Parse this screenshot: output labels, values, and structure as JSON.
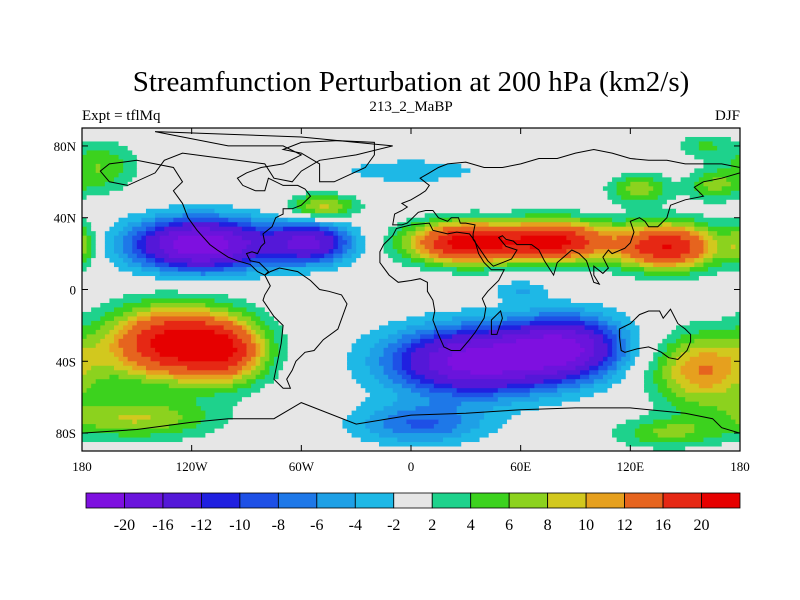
{
  "chart_data": {
    "type": "heatmap",
    "title": "Streamfunction Perturbation at 200 hPa (km2/s)",
    "left_label": "Expt = tflMq",
    "center_label": "213_2_MaBP",
    "right_label": "DJF",
    "x_range": [
      -180,
      180
    ],
    "y_range": [
      -90,
      90
    ],
    "x_ticks": [
      {
        "value": -180,
        "label": "180"
      },
      {
        "value": -120,
        "label": "120W"
      },
      {
        "value": -60,
        "label": "60W"
      },
      {
        "value": 0,
        "label": "0"
      },
      {
        "value": 60,
        "label": "60E"
      },
      {
        "value": 120,
        "label": "120E"
      },
      {
        "value": 180,
        "label": "180"
      }
    ],
    "y_ticks": [
      {
        "value": 80,
        "label": "80N"
      },
      {
        "value": 40,
        "label": "40N"
      },
      {
        "value": 0,
        "label": "0"
      },
      {
        "value": -40,
        "label": "40S"
      },
      {
        "value": -80,
        "label": "80S"
      }
    ],
    "contour_levels": [
      -20,
      -16,
      -12,
      -10,
      -8,
      -6,
      -4,
      -2,
      2,
      4,
      6,
      8,
      10,
      12,
      16,
      20
    ],
    "colorbar_labels": [
      "-20",
      "-16",
      "-12",
      "-10",
      "-8",
      "-6",
      "-4",
      "-2",
      "2",
      "4",
      "6",
      "8",
      "10",
      "12",
      "16",
      "20"
    ],
    "colors": [
      "#7e10e0",
      "#6a14dc",
      "#5418d8",
      "#2020e0",
      "#1e50e6",
      "#1e78e8",
      "#1ea0e6",
      "#1eb8e6",
      "#e6e6e6",
      "#1ed28c",
      "#3cd21e",
      "#8cd21e",
      "#d2c81e",
      "#e6a01e",
      "#e6641e",
      "#e62814",
      "#e60000"
    ],
    "anomaly_centers": [
      {
        "lon": -170,
        "lat": 68,
        "amp": 6,
        "slon": 14,
        "slat": 10
      },
      {
        "lon": -115,
        "lat": 25,
        "amp": -24,
        "slon": 26,
        "slat": 10
      },
      {
        "lon": -55,
        "lat": 26,
        "amp": -16,
        "slon": 16,
        "slat": 8
      },
      {
        "lon": -48,
        "lat": 46,
        "amp": 9,
        "slon": 13,
        "slat": 5
      },
      {
        "lon": 30,
        "lat": 26,
        "amp": 22,
        "slon": 22,
        "slat": 8
      },
      {
        "lon": 80,
        "lat": 27,
        "amp": 20,
        "slon": 20,
        "slat": 8
      },
      {
        "lon": 140,
        "lat": 24,
        "amp": 20,
        "slon": 20,
        "slat": 9
      },
      {
        "lon": -180,
        "lat": 25,
        "amp": 6,
        "slon": 6,
        "slat": 9
      },
      {
        "lon": 125,
        "lat": 56,
        "amp": 7,
        "slon": 12,
        "slat": 6
      },
      {
        "lon": 165,
        "lat": 58,
        "amp": 6,
        "slon": 10,
        "slat": 6
      },
      {
        "lon": 0,
        "lat": 66,
        "amp": -3,
        "slon": 35,
        "slat": 6
      },
      {
        "lon": 160,
        "lat": 80,
        "amp": 4,
        "slon": 10,
        "slat": 5
      },
      {
        "lon": -130,
        "lat": -30,
        "amp": 22,
        "slon": 25,
        "slat": 14
      },
      {
        "lon": -100,
        "lat": -35,
        "amp": 12,
        "slon": 15,
        "slat": 12
      },
      {
        "lon": -150,
        "lat": -72,
        "amp": 8,
        "slon": 30,
        "slat": 8
      },
      {
        "lon": 35,
        "lat": -40,
        "amp": -22,
        "slon": 32,
        "slat": 13
      },
      {
        "lon": 85,
        "lat": -32,
        "amp": -18,
        "slon": 22,
        "slat": 12
      },
      {
        "lon": 5,
        "lat": -75,
        "amp": -8,
        "slon": 25,
        "slat": 8
      },
      {
        "lon": 160,
        "lat": -45,
        "amp": 12,
        "slon": 20,
        "slat": 14
      },
      {
        "lon": 140,
        "lat": -80,
        "amp": 6,
        "slon": 20,
        "slat": 6
      },
      {
        "lon": 60,
        "lat": 0,
        "amp": -4,
        "slon": 10,
        "slat": 4
      }
    ],
    "coastlines": [
      [
        [
          -140,
          88
        ],
        [
          -60,
          85
        ],
        [
          -30,
          82
        ],
        [
          -10,
          80
        ],
        [
          -30,
          75
        ],
        [
          -50,
          72
        ],
        [
          -60,
          66
        ],
        [
          -65,
          60
        ],
        [
          -75,
          62
        ],
        [
          -80,
          70
        ],
        [
          -95,
          72
        ],
        [
          -110,
          74
        ],
        [
          -125,
          76
        ],
        [
          -135,
          72
        ],
        [
          -140,
          65
        ],
        [
          -155,
          58
        ],
        [
          -165,
          60
        ],
        [
          -170,
          66
        ],
        [
          -165,
          70
        ],
        [
          -150,
          72
        ],
        [
          -140,
          70
        ],
        [
          -130,
          68
        ],
        [
          -125,
          60
        ],
        [
          -130,
          55
        ],
        [
          -125,
          48
        ],
        [
          -122,
          40
        ],
        [
          -117,
          33
        ],
        [
          -110,
          25
        ],
        [
          -106,
          22
        ],
        [
          -100,
          18
        ],
        [
          -95,
          16
        ],
        [
          -88,
          14
        ],
        [
          -84,
          10
        ],
        [
          -80,
          8
        ],
        [
          -78,
          10
        ],
        [
          -83,
          15
        ],
        [
          -88,
          16
        ],
        [
          -90,
          20
        ],
        [
          -87,
          21
        ],
        [
          -84,
          20
        ],
        [
          -82,
          24
        ],
        [
          -80,
          26
        ],
        [
          -81,
          31
        ],
        [
          -76,
          35
        ],
        [
          -74,
          40
        ],
        [
          -70,
          42
        ],
        [
          -70,
          45
        ],
        [
          -65,
          45
        ],
        [
          -60,
          47
        ],
        [
          -55,
          52
        ],
        [
          -58,
          56
        ],
        [
          -62,
          58
        ],
        [
          -70,
          58
        ],
        [
          -78,
          62
        ],
        [
          -80,
          55
        ],
        [
          -85,
          55
        ],
        [
          -92,
          58
        ],
        [
          -95,
          62
        ],
        [
          -90,
          65
        ],
        [
          -82,
          68
        ],
        [
          -70,
          70
        ],
        [
          -60,
          75
        ],
        [
          -70,
          80
        ],
        [
          -100,
          80
        ],
        [
          -140,
          88
        ]
      ],
      [
        [
          -80,
          8
        ],
        [
          -77,
          2
        ],
        [
          -80,
          -3
        ],
        [
          -81,
          -6
        ],
        [
          -75,
          -15
        ],
        [
          -70,
          -20
        ],
        [
          -71,
          -30
        ],
        [
          -73,
          -40
        ],
        [
          -75,
          -50
        ],
        [
          -70,
          -55
        ],
        [
          -66,
          -55
        ],
        [
          -68,
          -50
        ],
        [
          -65,
          -45
        ],
        [
          -63,
          -40
        ],
        [
          -58,
          -35
        ],
        [
          -53,
          -34
        ],
        [
          -48,
          -28
        ],
        [
          -40,
          -22
        ],
        [
          -35,
          -8
        ],
        [
          -38,
          -3
        ],
        [
          -45,
          -1
        ],
        [
          -50,
          0
        ],
        [
          -55,
          5
        ],
        [
          -62,
          10
        ],
        [
          -72,
          12
        ],
        [
          -77,
          10
        ],
        [
          -80,
          8
        ]
      ],
      [
        [
          -10,
          36
        ],
        [
          -9,
          42
        ],
        [
          -5,
          44
        ],
        [
          -2,
          46
        ],
        [
          -5,
          48
        ],
        [
          0,
          50
        ],
        [
          5,
          53
        ],
        [
          8,
          55
        ],
        [
          10,
          58
        ],
        [
          5,
          62
        ],
        [
          10,
          65
        ],
        [
          15,
          68
        ],
        [
          20,
          70
        ],
        [
          30,
          71
        ],
        [
          40,
          68
        ],
        [
          50,
          68
        ],
        [
          60,
          70
        ],
        [
          70,
          73
        ],
        [
          80,
          73
        ],
        [
          90,
          76
        ],
        [
          100,
          78
        ],
        [
          110,
          76
        ],
        [
          120,
          73
        ],
        [
          130,
          72
        ],
        [
          140,
          72
        ],
        [
          150,
          70
        ],
        [
          160,
          70
        ],
        [
          170,
          70
        ],
        [
          180,
          68
        ],
        [
          180,
          65
        ],
        [
          170,
          62
        ],
        [
          160,
          60
        ],
        [
          155,
          57
        ],
        [
          160,
          52
        ],
        [
          150,
          50
        ],
        [
          142,
          47
        ],
        [
          140,
          40
        ],
        [
          135,
          35
        ],
        [
          130,
          35
        ],
        [
          128,
          38
        ],
        [
          125,
          40
        ],
        [
          120,
          38
        ],
        [
          122,
          32
        ],
        [
          120,
          26
        ],
        [
          117,
          23
        ],
        [
          110,
          20
        ],
        [
          108,
          22
        ],
        [
          105,
          18
        ],
        [
          108,
          12
        ],
        [
          105,
          9
        ],
        [
          100,
          13
        ],
        [
          100,
          8
        ],
        [
          103,
          3
        ],
        [
          100,
          4
        ],
        [
          98,
          10
        ],
        [
          96,
          16
        ],
        [
          92,
          20
        ],
        [
          88,
          22
        ],
        [
          80,
          15
        ],
        [
          78,
          8
        ],
        [
          73,
          16
        ],
        [
          70,
          22
        ],
        [
          66,
          25
        ],
        [
          58,
          25
        ],
        [
          56,
          27
        ],
        [
          52,
          28
        ],
        [
          50,
          30
        ],
        [
          48,
          29
        ],
        [
          52,
          24
        ],
        [
          58,
          22
        ],
        [
          55,
          17
        ],
        [
          45,
          13
        ],
        [
          42,
          16
        ],
        [
          38,
          22
        ],
        [
          34,
          28
        ],
        [
          34,
          31
        ],
        [
          35,
          36
        ],
        [
          30,
          37
        ],
        [
          27,
          37
        ],
        [
          26,
          40
        ],
        [
          22,
          40
        ],
        [
          20,
          38
        ],
        [
          15,
          40
        ],
        [
          12,
          44
        ],
        [
          8,
          44
        ],
        [
          4,
          43
        ],
        [
          -2,
          37
        ],
        [
          -5,
          36
        ],
        [
          -10,
          36
        ]
      ],
      [
        [
          -17,
          21
        ],
        [
          -17,
          15
        ],
        [
          -12,
          8
        ],
        [
          -7,
          4
        ],
        [
          0,
          5
        ],
        [
          5,
          6
        ],
        [
          9,
          4
        ],
        [
          9,
          -1
        ],
        [
          12,
          -6
        ],
        [
          13,
          -12
        ],
        [
          12,
          -17
        ],
        [
          15,
          -25
        ],
        [
          18,
          -32
        ],
        [
          22,
          -34
        ],
        [
          27,
          -34
        ],
        [
          32,
          -28
        ],
        [
          35,
          -24
        ],
        [
          40,
          -16
        ],
        [
          41,
          -10
        ],
        [
          39,
          -5
        ],
        [
          42,
          -1
        ],
        [
          48,
          5
        ],
        [
          51,
          11
        ],
        [
          44,
          11
        ],
        [
          40,
          15
        ],
        [
          37,
          20
        ],
        [
          35,
          27
        ],
        [
          32,
          31
        ],
        [
          25,
          32
        ],
        [
          20,
          31
        ],
        [
          12,
          33
        ],
        [
          10,
          37
        ],
        [
          0,
          36
        ],
        [
          -8,
          34
        ],
        [
          -10,
          30
        ],
        [
          -15,
          25
        ],
        [
          -17,
          21
        ]
      ],
      [
        [
          114,
          -22
        ],
        [
          120,
          -19
        ],
        [
          125,
          -14
        ],
        [
          130,
          -12
        ],
        [
          136,
          -12
        ],
        [
          138,
          -16
        ],
        [
          142,
          -11
        ],
        [
          146,
          -19
        ],
        [
          150,
          -22
        ],
        [
          153,
          -25
        ],
        [
          153,
          -29
        ],
        [
          151,
          -34
        ],
        [
          146,
          -39
        ],
        [
          141,
          -38
        ],
        [
          137,
          -35
        ],
        [
          135,
          -34
        ],
        [
          130,
          -32
        ],
        [
          124,
          -33
        ],
        [
          117,
          -35
        ],
        [
          115,
          -34
        ],
        [
          114,
          -26
        ],
        [
          114,
          -22
        ]
      ],
      [
        [
          -60,
          -63
        ],
        [
          -30,
          -75
        ],
        [
          0,
          -70
        ],
        [
          30,
          -69
        ],
        [
          60,
          -67
        ],
        [
          90,
          -66
        ],
        [
          120,
          -66
        ],
        [
          150,
          -69
        ],
        [
          165,
          -72
        ],
        [
          170,
          -77
        ],
        [
          180,
          -80
        ],
        [
          180,
          -90
        ],
        [
          -180,
          -90
        ],
        [
          -180,
          -80
        ],
        [
          -150,
          -78
        ],
        [
          -120,
          -74
        ],
        [
          -100,
          -72
        ],
        [
          -75,
          -72
        ],
        [
          -65,
          -66
        ],
        [
          -60,
          -63
        ]
      ],
      [
        [
          -50,
          60
        ],
        [
          -42,
          60
        ],
        [
          -25,
          68
        ],
        [
          -20,
          75
        ],
        [
          -20,
          82
        ],
        [
          -40,
          83
        ],
        [
          -60,
          82
        ],
        [
          -70,
          78
        ],
        [
          -60,
          76
        ],
        [
          -50,
          70
        ],
        [
          -50,
          60
        ]
      ],
      [
        [
          44,
          -25
        ],
        [
          47,
          -25
        ],
        [
          50,
          -16
        ],
        [
          49,
          -12
        ],
        [
          44,
          -17
        ],
        [
          44,
          -25
        ]
      ]
    ]
  }
}
